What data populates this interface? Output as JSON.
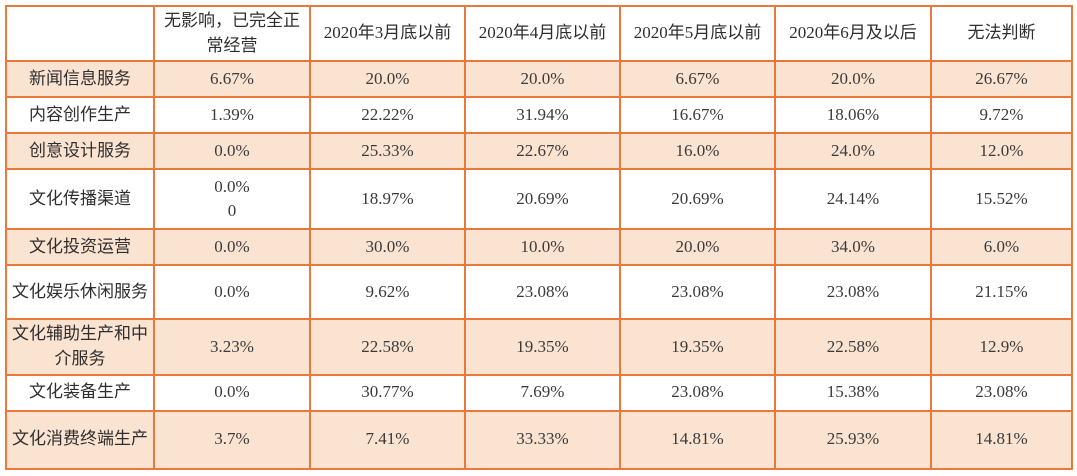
{
  "colors": {
    "border": "#e8793a",
    "row_shaded_bg": "#fbe3d1",
    "row_plain_bg": "#ffffff",
    "text": "#3a3a3a"
  },
  "table": {
    "columns": [
      "",
      "无影响，已完全正常经营",
      "2020年3月底以前",
      "2020年4月底以前",
      "2020年5月底以前",
      "2020年6月及以后",
      "无法判断"
    ],
    "rows": [
      {
        "label": "新闻信息服务",
        "values": [
          "6.67%",
          "20.0%",
          "20.0%",
          "6.67%",
          "20.0%",
          "26.67%"
        ],
        "shaded": true,
        "height": 36
      },
      {
        "label": "内容创作生产",
        "values": [
          "1.39%",
          "22.22%",
          "31.94%",
          "16.67%",
          "18.06%",
          "9.72%"
        ],
        "shaded": false,
        "height": 36
      },
      {
        "label": "创意设计服务",
        "values": [
          "0.0%",
          "25.33%",
          "22.67%",
          "16.0%",
          "24.0%",
          "12.0%"
        ],
        "shaded": true,
        "height": 36
      },
      {
        "label": "文化传播渠道",
        "values": [
          "0.0%\n0",
          "18.97%",
          "20.69%",
          "20.69%",
          "24.14%",
          "15.52%"
        ],
        "shaded": false,
        "height": 60
      },
      {
        "label": "文化投资运营",
        "values": [
          "0.0%",
          "30.0%",
          "10.0%",
          "20.0%",
          "34.0%",
          "6.0%"
        ],
        "shaded": true,
        "height": 36
      },
      {
        "label": "文化娱乐休闲服务",
        "values": [
          "0.0%",
          "9.62%",
          "23.08%",
          "23.08%",
          "23.08%",
          "21.15%"
        ],
        "shaded": false,
        "height": 54
      },
      {
        "label": "文化辅助生产和中介服务",
        "values": [
          "3.23%",
          "22.58%",
          "19.35%",
          "19.35%",
          "22.58%",
          "12.9%"
        ],
        "shaded": true,
        "height": 54
      },
      {
        "label": "文化装备生产",
        "values": [
          "0.0%",
          "30.77%",
          "7.69%",
          "23.08%",
          "15.38%",
          "23.08%"
        ],
        "shaded": false,
        "height": 36
      },
      {
        "label": "文化消费终端生产",
        "values": [
          "3.7%",
          "7.41%",
          "33.33%",
          "14.81%",
          "25.93%",
          "14.81%"
        ],
        "shaded": true,
        "height": 58
      }
    ]
  }
}
